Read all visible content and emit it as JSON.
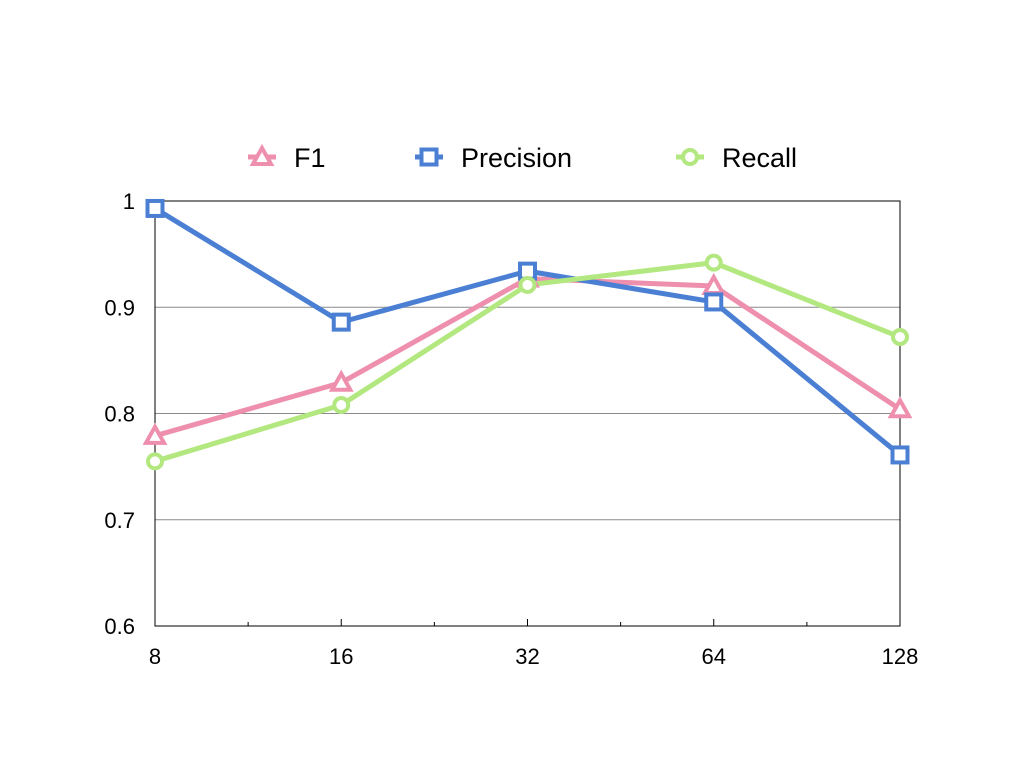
{
  "chart_data": {
    "type": "line",
    "title": "",
    "xlabel": "",
    "ylabel": "",
    "x_scale": "log2",
    "x": [
      8,
      16,
      32,
      64,
      128
    ],
    "x_tick_labels": [
      "8",
      "16",
      "32",
      "64",
      "128"
    ],
    "ylim": [
      0.6,
      1.0
    ],
    "y_ticks": [
      0.6,
      0.7,
      0.8,
      0.9,
      1.0
    ],
    "y_tick_labels": [
      "0.6",
      "0.7",
      "0.8",
      "0.9",
      "1"
    ],
    "grid": "horizontal",
    "legend_position": "top-center",
    "series": [
      {
        "name": "F1",
        "values": [
          0.779,
          0.829,
          0.927,
          0.92,
          0.804
        ],
        "color": "#ee8fae",
        "marker": "triangle"
      },
      {
        "name": "Precision",
        "values": [
          0.993,
          0.886,
          0.934,
          0.905,
          0.761
        ],
        "color": "#4a7fd4",
        "marker": "square"
      },
      {
        "name": "Recall",
        "values": [
          0.755,
          0.808,
          0.921,
          0.942,
          0.872
        ],
        "color": "#b3e77f",
        "marker": "circle"
      }
    ]
  }
}
